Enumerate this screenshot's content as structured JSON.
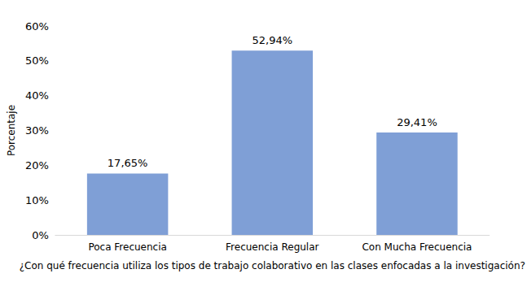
{
  "chart_data": {
    "type": "bar",
    "x_label": "¿Con qué frecuencia utiliza los tipos de trabajo colaborativo en las clases enfocadas a la investigación?",
    "y_label": "Porcentaje",
    "categories": [
      "Poca Frecuencia",
      "Frecuencia Regular",
      "Con Mucha Frecuencia"
    ],
    "values": [
      17.65,
      52.94,
      29.41
    ],
    "value_labels": [
      "17,65%",
      "52,94%",
      "29,41%"
    ],
    "color": "#7f9fd6",
    "ylim": [
      0,
      60
    ],
    "yticks": [
      {
        "value": 0,
        "label": "0%"
      },
      {
        "value": 10,
        "label": "10%"
      },
      {
        "value": 20,
        "label": "20%"
      },
      {
        "value": 30,
        "label": "30%"
      },
      {
        "value": 40,
        "label": "40%"
      },
      {
        "value": 50,
        "label": "50%"
      },
      {
        "value": 60,
        "label": "60%"
      }
    ],
    "grid": false,
    "data_labels": true
  }
}
